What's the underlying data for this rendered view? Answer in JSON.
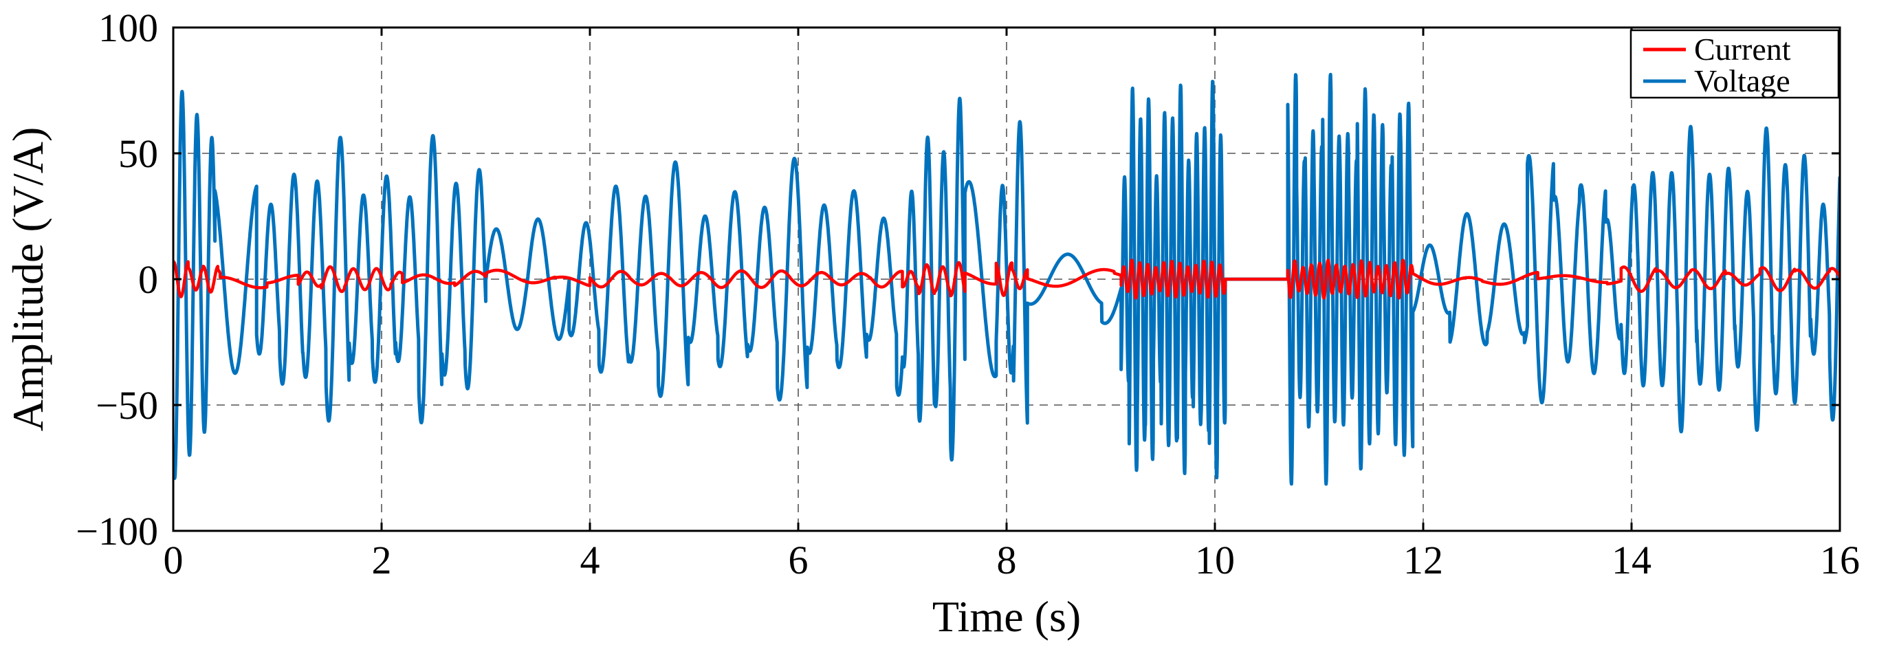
{
  "chart_data": {
    "type": "line",
    "title": "",
    "xlabel": "Time (s)",
    "ylabel": "Amplitude (V/A)",
    "xlim": [
      0,
      16
    ],
    "ylim": [
      -100,
      100
    ],
    "xticks": [
      0,
      2,
      4,
      6,
      8,
      10,
      12,
      14,
      16
    ],
    "yticks": [
      -100,
      -50,
      0,
      50,
      100
    ],
    "xtick_labels": [
      "0",
      "2",
      "4",
      "6",
      "8",
      "10",
      "12",
      "14",
      "16"
    ],
    "ytick_labels": [
      "−100",
      "−50",
      "0",
      "50",
      "100"
    ],
    "grid": "dashed",
    "legend_position": "top-right",
    "series": [
      {
        "name": "Current",
        "color": "#ff0000",
        "segments": [
          {
            "start": 0.0,
            "end": 0.45,
            "kind": "osc",
            "freq": 7.0,
            "amp": 7.0
          },
          {
            "start": 0.45,
            "end": 0.9,
            "kind": "slow",
            "freq": 1.5,
            "amp": 1.5,
            "offset": -1.5
          },
          {
            "start": 0.9,
            "end": 1.2,
            "kind": "osc",
            "freq": 1.5,
            "amp": 3.5
          },
          {
            "start": 1.2,
            "end": 2.2,
            "kind": "osc",
            "freq": 4.5,
            "amp": 5.5
          },
          {
            "start": 2.2,
            "end": 3.0,
            "kind": "osc",
            "freq": 2.0,
            "amp": 3.5
          },
          {
            "start": 3.0,
            "end": 4.0,
            "kind": "slow",
            "freq": 1.5,
            "amp": 2.5
          },
          {
            "start": 4.0,
            "end": 7.0,
            "kind": "osc",
            "freq": 2.6,
            "amp": 4.0
          },
          {
            "start": 7.0,
            "end": 7.6,
            "kind": "osc",
            "freq": 6.5,
            "amp": 7.0
          },
          {
            "start": 7.6,
            "end": 7.9,
            "kind": "slow",
            "freq": 1.5,
            "amp": 2.0
          },
          {
            "start": 7.9,
            "end": 8.2,
            "kind": "osc",
            "freq": 6.5,
            "amp": 6.5
          },
          {
            "start": 8.2,
            "end": 9.1,
            "kind": "slow",
            "freq": 1.2,
            "amp": 2.5
          },
          {
            "start": 9.1,
            "end": 10.1,
            "kind": "osc",
            "freq": 13.0,
            "amp": 8.5
          },
          {
            "start": 10.1,
            "end": 10.7,
            "kind": "flat",
            "amp": 0
          },
          {
            "start": 10.7,
            "end": 11.9,
            "kind": "osc",
            "freq": 12.5,
            "amp": 8.5
          },
          {
            "start": 11.9,
            "end": 13.1,
            "kind": "slow",
            "freq": 1.5,
            "amp": 2.5
          },
          {
            "start": 13.1,
            "end": 13.9,
            "kind": "slow",
            "freq": 1.5,
            "amp": 1.5
          },
          {
            "start": 13.9,
            "end": 16.0,
            "kind": "osc",
            "freq": 3.0,
            "amp": 5.0
          }
        ]
      },
      {
        "name": "Voltage",
        "color": "#0072bd",
        "segments": [
          {
            "start": 0.0,
            "end": 0.4,
            "kind": "osc",
            "freq": 7.0,
            "amp": 80,
            "decay": 0.4
          },
          {
            "start": 0.4,
            "end": 0.8,
            "kind": "osc",
            "freq": 2.3,
            "amp": 38
          },
          {
            "start": 0.8,
            "end": 3.0,
            "kind": "osc",
            "freq": 4.5,
            "amp": 58
          },
          {
            "start": 3.0,
            "end": 3.8,
            "kind": "osc",
            "freq": 2.5,
            "amp": 28
          },
          {
            "start": 3.8,
            "end": 7.0,
            "kind": "osc",
            "freq": 3.5,
            "amp": 48
          },
          {
            "start": 7.0,
            "end": 7.6,
            "kind": "osc",
            "freq": 6.5,
            "amp": 74
          },
          {
            "start": 7.6,
            "end": 7.9,
            "kind": "osc",
            "freq": 2.0,
            "amp": 40
          },
          {
            "start": 7.9,
            "end": 8.2,
            "kind": "osc",
            "freq": 6.0,
            "amp": 70
          },
          {
            "start": 8.2,
            "end": 9.1,
            "kind": "osc",
            "freq": 1.4,
            "amp": 22
          },
          {
            "start": 9.1,
            "end": 10.1,
            "kind": "osc",
            "freq": 13.0,
            "amp": 86
          },
          {
            "start": 10.1,
            "end": 10.7,
            "kind": "flat",
            "amp": 0
          },
          {
            "start": 10.7,
            "end": 11.9,
            "kind": "osc",
            "freq": 12.0,
            "amp": 85
          },
          {
            "start": 11.9,
            "end": 13.0,
            "kind": "osc",
            "freq": 2.8,
            "amp": 30
          },
          {
            "start": 13.0,
            "end": 13.9,
            "kind": "osc",
            "freq": 4.0,
            "amp": 50
          },
          {
            "start": 13.9,
            "end": 16.0,
            "kind": "osc",
            "freq": 5.5,
            "amp": 64
          }
        ]
      }
    ]
  }
}
